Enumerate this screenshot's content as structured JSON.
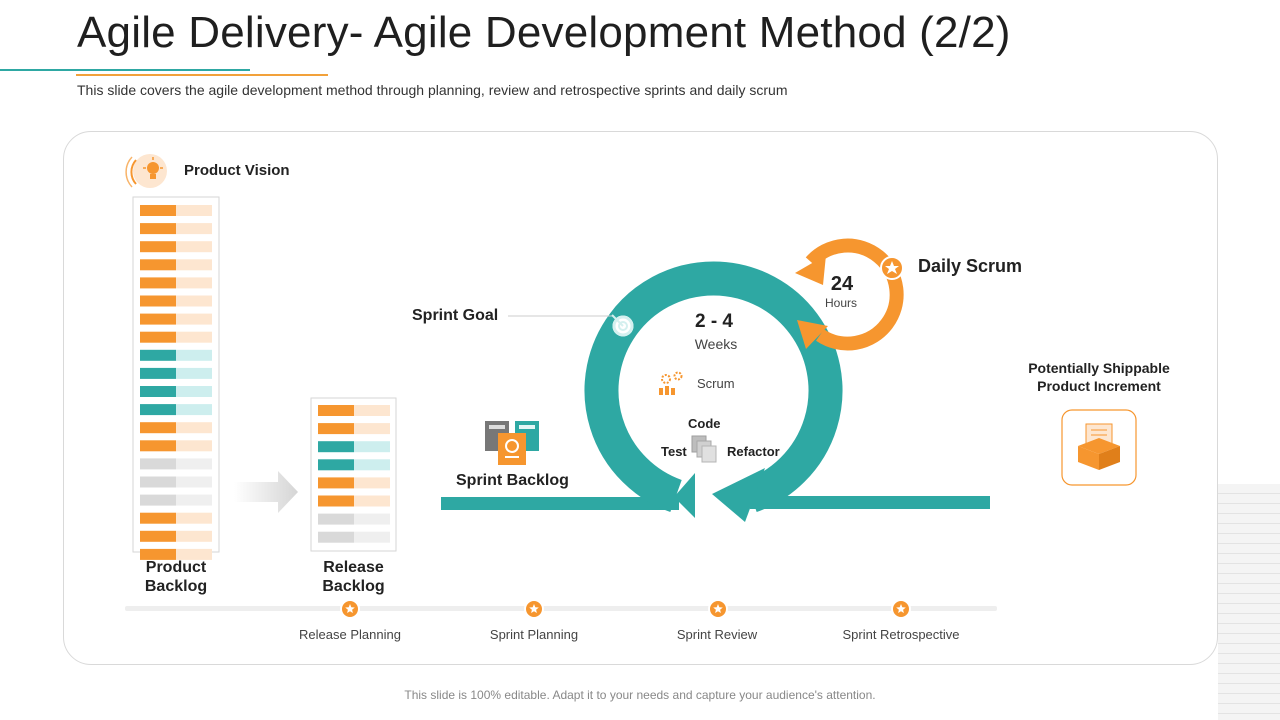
{
  "header": {
    "title": "Agile Delivery- Agile Development Method (2/2)",
    "subtitle": "This slide covers the agile development method through planning, review and retrospective sprints and daily scrum"
  },
  "diagram": {
    "product_vision": "Product Vision",
    "product_backlog": [
      "Product",
      "Backlog"
    ],
    "release_backlog": [
      "Release",
      "Backlog"
    ],
    "sprint_backlog": "Sprint Backlog",
    "sprint_goal": "Sprint Goal",
    "sprint_duration": {
      "value": "2 - 4",
      "unit": "Weeks"
    },
    "scrum_label": "Scrum",
    "code_label": "Code",
    "test_label": "Test",
    "refactor_label": "Refactor",
    "daily_scrum": {
      "value": "24",
      "unit": "Hours",
      "label": "Daily Scrum"
    },
    "increment": [
      "Potentially Shippable",
      "Product Increment"
    ],
    "timeline": [
      "Release Planning",
      "Sprint Planning",
      "Sprint Review",
      "Sprint Retrospective"
    ]
  },
  "footer": "This slide is 100% editable. Adapt it to your needs and capture your audience's attention.",
  "colors": {
    "teal": "#2ea8a3",
    "orange": "#f6962f",
    "light_orange": "#fde6d0",
    "light_teal": "#cdeeee",
    "grey": "#d9d9d9",
    "light_grey": "#efefef"
  },
  "icons": [
    "lightbulb-icon",
    "target-icon",
    "star-icon",
    "gears-icon",
    "documents-icon",
    "box-icon",
    "sprint-board-icon"
  ]
}
